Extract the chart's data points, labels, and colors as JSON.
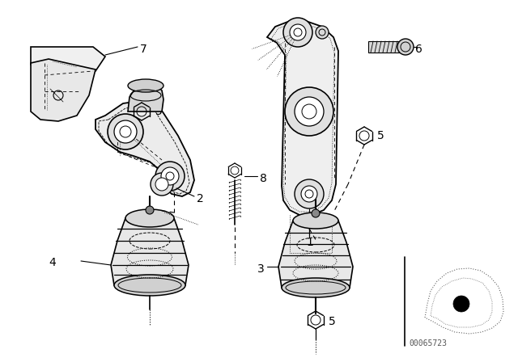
{
  "bg_color": "#ffffff",
  "line_color": "#000000",
  "fig_width": 6.4,
  "fig_height": 4.48,
  "dpi": 100,
  "watermark": "00065723"
}
